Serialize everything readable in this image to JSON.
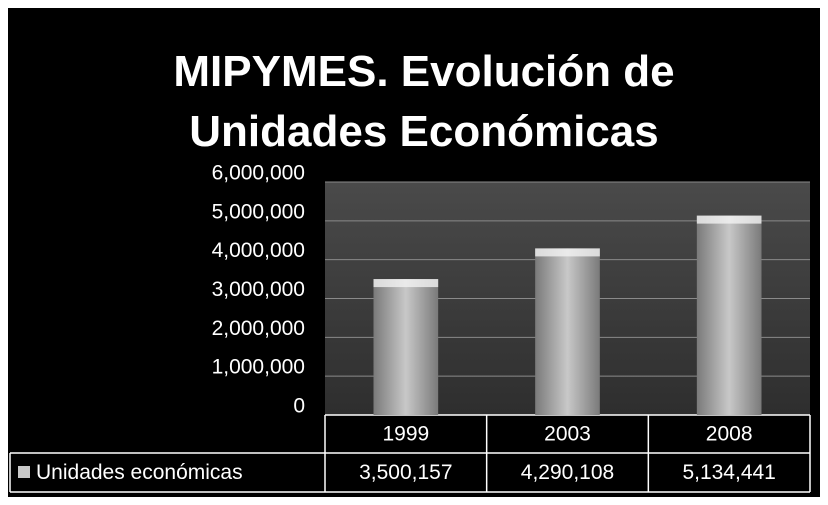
{
  "chart_data": {
    "type": "bar",
    "title": "MIPYMES. Evolución de Unidades Económicas",
    "categories": [
      "1999",
      "2003",
      "2008"
    ],
    "series": [
      {
        "name": "Unidades económicas",
        "color": "#c8c8c8",
        "values": [
          3500157,
          4290108,
          5134441
        ],
        "value_labels": [
          "3,500,157",
          "4,290,108",
          "5,134,441"
        ]
      }
    ],
    "ylim": [
      0,
      6000000
    ],
    "yticks": [
      0,
      {
        "value": 1000000,
        "label": "1,000,000"
      },
      {
        "value": 2000000,
        "label": "2,000,000"
      },
      {
        "value": 3000000,
        "label": "3,000,000"
      },
      {
        "value": 4000000,
        "label": "4,000,000"
      },
      {
        "value": 5000000,
        "label": "5,000,000"
      },
      {
        "value": 6000000,
        "label": "6,000,000"
      }
    ],
    "grid": true,
    "data_table": true
  }
}
